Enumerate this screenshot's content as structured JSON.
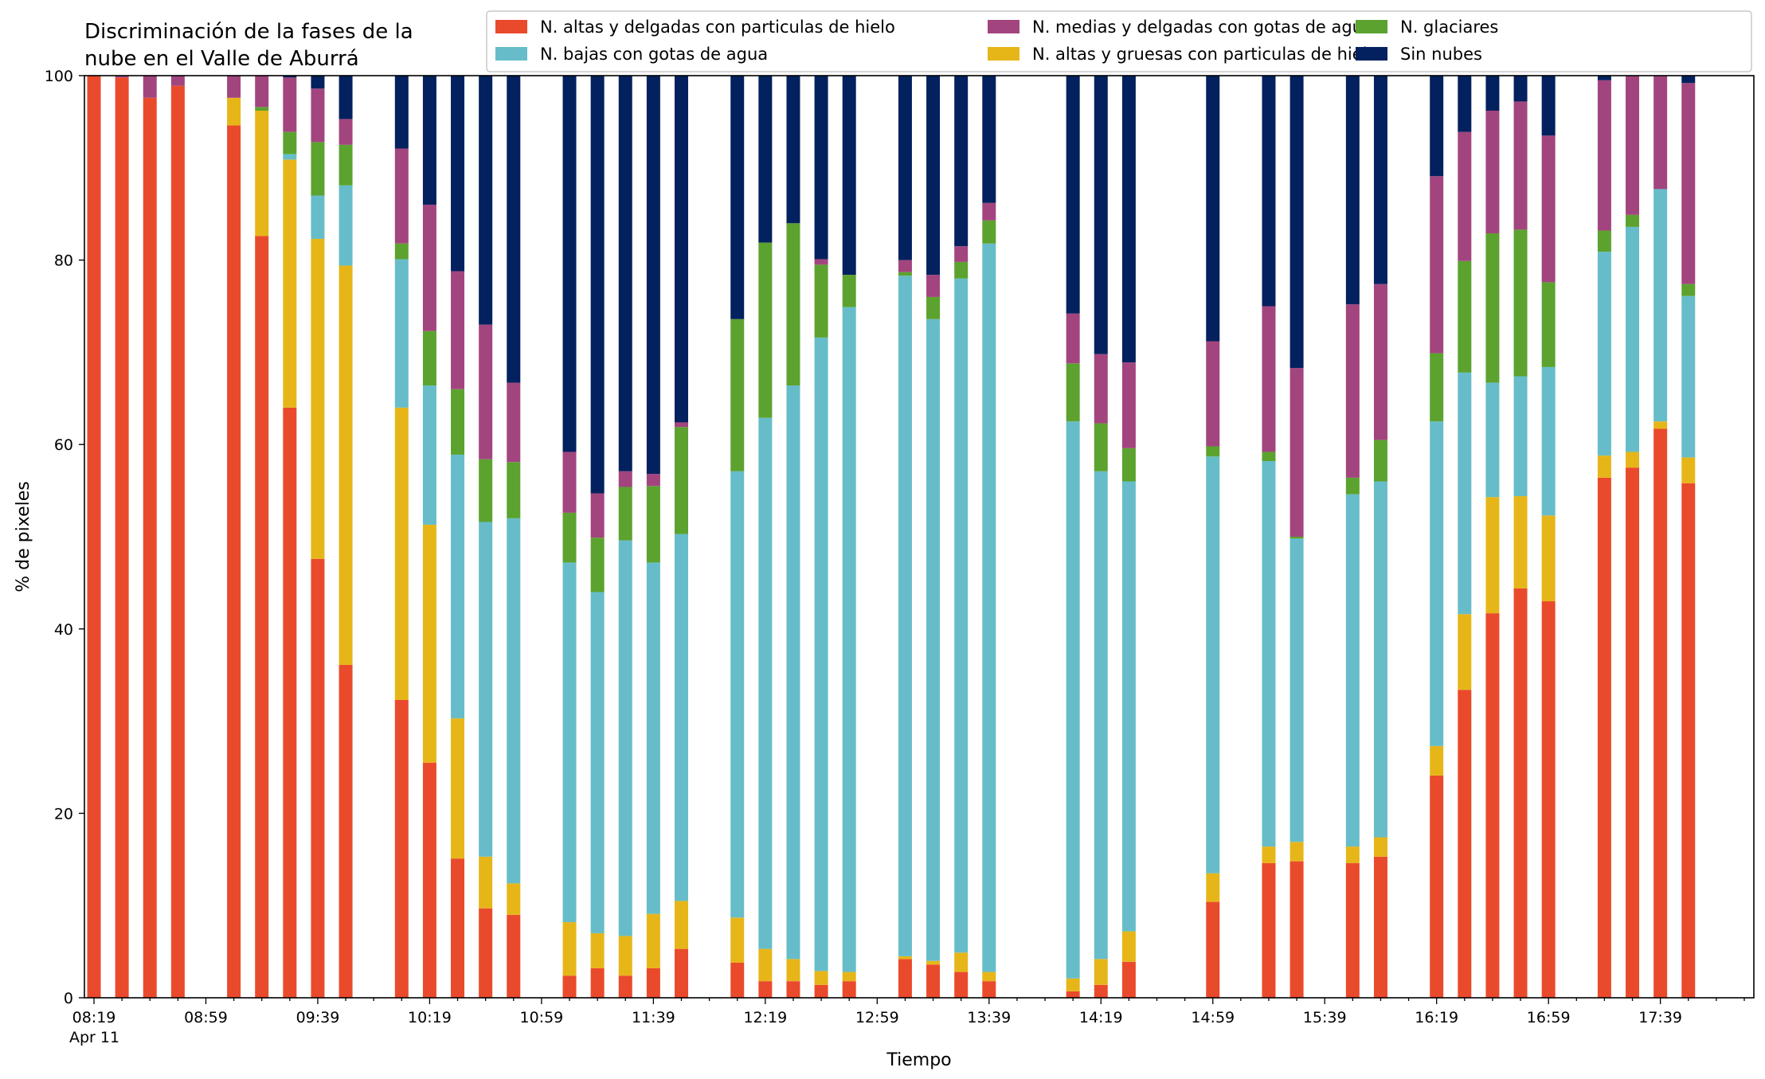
{
  "chart_data": {
    "type": "bar",
    "stacked": true,
    "title": "Discriminación de la fases de la nube en el Valle de Aburrá",
    "title_lines": [
      "Discriminación de la fases de la",
      "nube en el Valle de Aburrá"
    ],
    "xlabel": "Tiempo",
    "ylabel": "% de pixeles",
    "ylim": [
      0,
      100
    ],
    "yticks": [
      0,
      20,
      40,
      60,
      80,
      100
    ],
    "x_range_minutes": [
      0,
      590
    ],
    "xtick_labels": [
      "08:19",
      "08:59",
      "09:39",
      "10:19",
      "10:59",
      "11:39",
      "12:19",
      "12:59",
      "13:39",
      "14:19",
      "14:59",
      "15:39",
      "16:19",
      "16:59",
      "17:39"
    ],
    "xtick_date_label": "Apr 11",
    "legend_position": "top-right",
    "grid": false,
    "series": [
      {
        "name": "N. altas y delgadas con particulas de hielo",
        "color": "#ea4a2c"
      },
      {
        "name": "N. altas y gruesas con particulas de hielo",
        "color": "#e6b619"
      },
      {
        "name": "N. bajas con gotas de agua",
        "color": "#66bdc9"
      },
      {
        "name": "N. glaciares",
        "color": "#5ca22f"
      },
      {
        "name": "N. medias y delgadas con gotas de agua",
        "color": "#a2457e"
      },
      {
        "name": "Sin nubes",
        "color": "#03215e"
      }
    ],
    "legend_order": [
      0,
      2,
      4,
      1,
      3,
      5
    ],
    "bars": [
      {
        "t": "08:19",
        "values": [
          100,
          0,
          0,
          0,
          0,
          0
        ]
      },
      {
        "t": "08:29",
        "values": [
          99.8,
          0,
          0,
          0,
          0.2,
          0
        ]
      },
      {
        "t": "08:39",
        "values": [
          97.6,
          0,
          0,
          0,
          2.4,
          0
        ]
      },
      {
        "t": "08:49",
        "values": [
          98.9,
          0,
          0,
          0,
          1.1,
          0
        ]
      },
      {
        "t": "09:09",
        "values": [
          94.6,
          3.0,
          0,
          0,
          2.4,
          0
        ]
      },
      {
        "t": "09:19",
        "values": [
          82.6,
          13.6,
          0,
          0.4,
          3.4,
          0
        ]
      },
      {
        "t": "09:29",
        "values": [
          64.0,
          26.9,
          0.6,
          2.4,
          5.9,
          0.2
        ]
      },
      {
        "t": "09:39",
        "values": [
          47.6,
          34.7,
          4.7,
          5.8,
          5.8,
          1.4
        ]
      },
      {
        "t": "09:49",
        "values": [
          36.1,
          43.3,
          8.7,
          4.4,
          2.8,
          4.7
        ]
      },
      {
        "t": "10:09",
        "values": [
          32.3,
          31.7,
          16.1,
          1.7,
          10.3,
          7.9
        ]
      },
      {
        "t": "10:19",
        "values": [
          25.5,
          25.8,
          15.1,
          5.9,
          13.7,
          14.0
        ]
      },
      {
        "t": "10:29",
        "values": [
          15.1,
          15.2,
          28.6,
          7.1,
          12.8,
          21.2
        ]
      },
      {
        "t": "10:39",
        "values": [
          9.7,
          5.6,
          36.3,
          6.8,
          14.6,
          27.0
        ]
      },
      {
        "t": "10:49",
        "values": [
          9.0,
          3.4,
          39.6,
          6.1,
          8.6,
          33.3
        ]
      },
      {
        "t": "11:09",
        "values": [
          2.4,
          5.8,
          39.0,
          5.4,
          6.6,
          40.8
        ]
      },
      {
        "t": "11:19",
        "values": [
          3.2,
          3.8,
          37.0,
          5.9,
          4.8,
          45.3
        ]
      },
      {
        "t": "11:29",
        "values": [
          2.4,
          4.3,
          42.9,
          5.8,
          1.7,
          42.9
        ]
      },
      {
        "t": "11:39",
        "values": [
          3.2,
          5.9,
          38.1,
          8.3,
          1.3,
          43.2
        ]
      },
      {
        "t": "11:49",
        "values": [
          5.3,
          5.2,
          39.8,
          11.6,
          0.5,
          37.6
        ]
      },
      {
        "t": "12:09",
        "values": [
          3.8,
          4.9,
          48.4,
          16.5,
          0,
          26.4
        ]
      },
      {
        "t": "12:19",
        "values": [
          1.8,
          3.5,
          57.6,
          19.0,
          0,
          18.1
        ]
      },
      {
        "t": "12:29",
        "values": [
          1.8,
          2.4,
          62.2,
          17.6,
          0,
          16.0
        ]
      },
      {
        "t": "12:39",
        "values": [
          1.4,
          1.5,
          68.7,
          7.9,
          0.6,
          19.9
        ]
      },
      {
        "t": "12:49",
        "values": [
          1.8,
          1.0,
          72.1,
          3.5,
          0,
          21.6
        ]
      },
      {
        "t": "13:09",
        "values": [
          4.2,
          0.3,
          73.8,
          0.4,
          1.3,
          20.0
        ]
      },
      {
        "t": "13:19",
        "values": [
          3.6,
          0.4,
          69.6,
          2.4,
          2.4,
          21.6
        ]
      },
      {
        "t": "13:29",
        "values": [
          2.8,
          2.1,
          73.1,
          1.8,
          1.7,
          18.5
        ]
      },
      {
        "t": "13:39",
        "values": [
          1.8,
          1.0,
          79.0,
          2.5,
          1.9,
          13.8
        ]
      },
      {
        "t": "14:09",
        "values": [
          0.7,
          1.4,
          60.4,
          6.3,
          5.4,
          25.8
        ]
      },
      {
        "t": "14:19",
        "values": [
          1.4,
          2.8,
          52.9,
          5.2,
          7.5,
          30.2
        ]
      },
      {
        "t": "14:29",
        "values": [
          3.9,
          3.3,
          48.8,
          3.6,
          9.3,
          31.1
        ]
      },
      {
        "t": "14:59",
        "values": [
          10.4,
          3.1,
          45.2,
          1.1,
          11.4,
          28.8
        ]
      },
      {
        "t": "15:19",
        "values": [
          14.6,
          1.8,
          41.8,
          1.0,
          15.8,
          25.0
        ]
      },
      {
        "t": "15:29",
        "values": [
          14.8,
          2.1,
          32.9,
          0.2,
          18.3,
          31.7
        ]
      },
      {
        "t": "15:49",
        "values": [
          14.6,
          1.8,
          38.2,
          1.8,
          18.8,
          24.8
        ]
      },
      {
        "t": "15:59",
        "values": [
          15.3,
          2.1,
          38.6,
          4.5,
          16.9,
          22.6
        ]
      },
      {
        "t": "16:19",
        "values": [
          24.1,
          3.2,
          35.2,
          7.4,
          19.2,
          10.9
        ]
      },
      {
        "t": "16:29",
        "values": [
          33.4,
          8.2,
          26.2,
          12.1,
          14.0,
          6.1
        ]
      },
      {
        "t": "16:39",
        "values": [
          41.7,
          12.6,
          12.4,
          16.2,
          13.3,
          3.8
        ]
      },
      {
        "t": "16:49",
        "values": [
          44.4,
          10.0,
          13.0,
          15.9,
          13.9,
          2.8
        ]
      },
      {
        "t": "16:59",
        "values": [
          43.0,
          9.3,
          16.1,
          9.2,
          15.9,
          6.5
        ]
      },
      {
        "t": "17:19",
        "values": [
          56.4,
          2.4,
          22.1,
          2.3,
          16.3,
          0.5
        ]
      },
      {
        "t": "17:29",
        "values": [
          57.5,
          1.7,
          24.4,
          1.3,
          15.1,
          0
        ]
      },
      {
        "t": "17:39",
        "values": [
          61.7,
          0.8,
          25.2,
          0,
          12.3,
          0
        ]
      },
      {
        "t": "17:49",
        "values": [
          55.8,
          2.8,
          17.5,
          1.3,
          21.8,
          0.8
        ]
      }
    ]
  }
}
